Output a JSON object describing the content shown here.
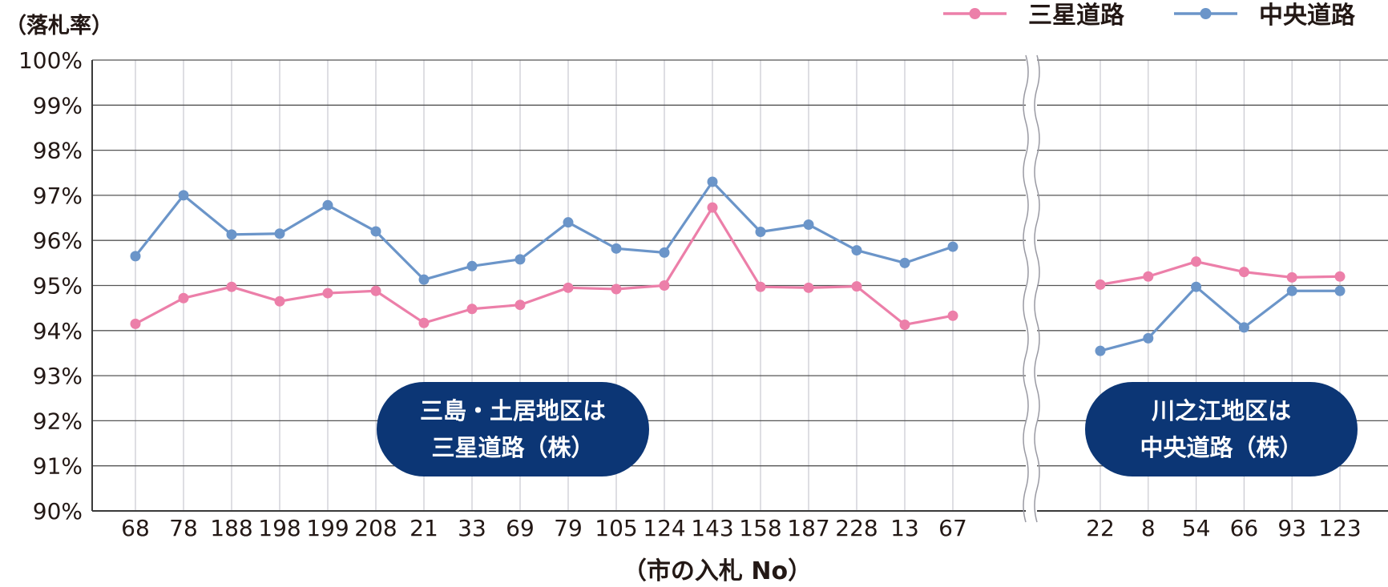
{
  "chart_data": {
    "type": "line",
    "y_unit_label": "（落札率）",
    "x_axis_label": "（市の入札 No）",
    "ylim": [
      90,
      100
    ],
    "y_ticks": [
      "90%",
      "91%",
      "92%",
      "93%",
      "94%",
      "95%",
      "96%",
      "97%",
      "98%",
      "99%",
      "100%"
    ],
    "grid": true,
    "legend_position": "top-right",
    "axis_break_between_groups": true,
    "groups": [
      {
        "categories": [
          "68",
          "78",
          "188",
          "198",
          "199",
          "208",
          "21",
          "33",
          "69",
          "79",
          "105",
          "124",
          "143",
          "158",
          "187",
          "228",
          "13",
          "67"
        ],
        "series": [
          {
            "name": "三星道路",
            "color": "#ec7fa9",
            "values": [
              94.15,
              94.72,
              94.97,
              94.65,
              94.83,
              94.88,
              94.17,
              94.48,
              94.57,
              94.95,
              94.92,
              95.0,
              96.73,
              94.97,
              94.95,
              94.98,
              94.13,
              94.33
            ]
          },
          {
            "name": "中央道路",
            "color": "#6b95c9",
            "values": [
              95.65,
              97.0,
              96.13,
              96.15,
              96.78,
              96.2,
              95.13,
              95.43,
              95.58,
              96.4,
              95.82,
              95.73,
              97.3,
              96.19,
              96.35,
              95.78,
              95.5,
              95.86
            ]
          }
        ]
      },
      {
        "categories": [
          "22",
          "8",
          "54",
          "66",
          "93",
          "123"
        ],
        "series": [
          {
            "name": "三星道路",
            "color": "#ec7fa9",
            "values": [
              95.02,
              95.2,
              95.53,
              95.3,
              95.18,
              95.2
            ]
          },
          {
            "name": "中央道路",
            "color": "#6b95c9",
            "values": [
              93.55,
              93.83,
              94.97,
              94.07,
              94.88,
              94.88
            ]
          }
        ]
      }
    ]
  },
  "callouts": [
    {
      "line1": "三島・土居地区は",
      "line2": "三星道路（株）"
    },
    {
      "line1": "川之江地区は",
      "line2": "中央道路（株）"
    }
  ],
  "style": {
    "grid_color": "#c9c9d0",
    "axis_color": "#3a3a3a",
    "callout_color": "#0c3675",
    "text_color": "#231815"
  }
}
